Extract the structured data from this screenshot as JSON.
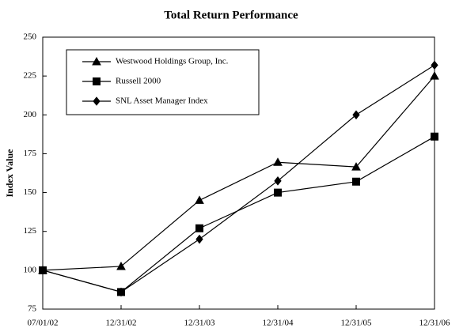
{
  "chart_data": {
    "type": "line",
    "title": "Total Return Performance",
    "y_label": "Index Value",
    "categories": [
      "07/01/02",
      "12/31/02",
      "12/31/03",
      "12/31/04",
      "12/31/05",
      "12/31/06"
    ],
    "series": [
      {
        "name": "Westwood Holdings Group, Inc.",
        "color": "#000000",
        "marker": "triangle",
        "values": [
          100,
          102.5,
          145,
          169.5,
          166.5,
          225
        ]
      },
      {
        "name": "Russell 2000",
        "color": "#000000",
        "marker": "square",
        "values": [
          100,
          86,
          127,
          150,
          157,
          186
        ]
      },
      {
        "name": "SNL Asset Manager Index",
        "color": "#000000",
        "marker": "diamond",
        "values": [
          100,
          86,
          120,
          157.5,
          200,
          232
        ]
      }
    ],
    "ylim": [
      75,
      250
    ],
    "yticks": [
      75,
      100,
      125,
      150,
      175,
      200,
      225,
      250
    ],
    "grid": false,
    "legend": "upper left"
  }
}
